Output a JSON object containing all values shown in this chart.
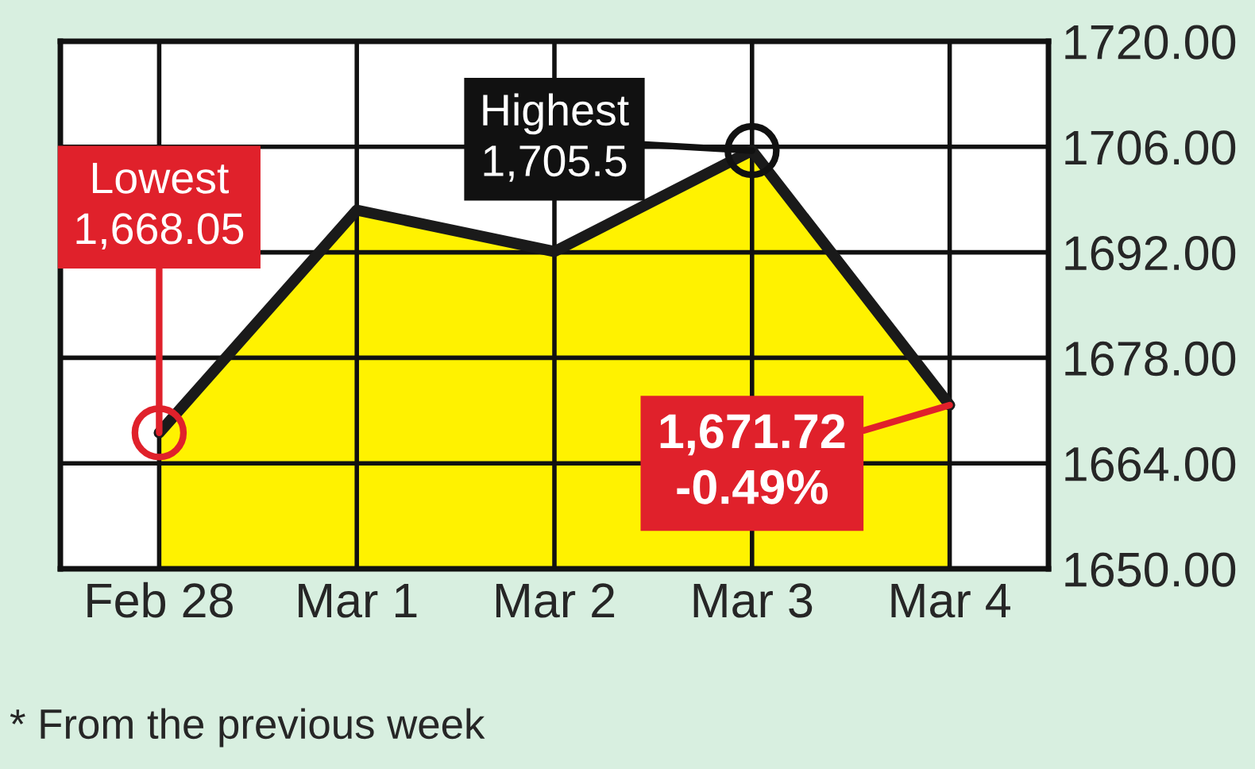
{
  "chart_data": {
    "type": "area",
    "categories": [
      "Feb 28",
      "Mar 1",
      "Mar 2",
      "Mar 3",
      "Mar 4"
    ],
    "series": [
      {
        "color": "#fff200",
        "values": [
          1668.05,
          1697.6,
          1692.1,
          1705.5,
          1671.72
        ]
      }
    ],
    "ylim": [
      1650,
      1720
    ],
    "yticks": [
      {
        "value": 1650,
        "label": "1650.00"
      },
      {
        "value": 1664,
        "label": "1664.00"
      },
      {
        "value": 1678,
        "label": "1678.00"
      },
      {
        "value": 1692,
        "label": "1692.00"
      },
      {
        "value": 1706,
        "label": "1706.00"
      },
      {
        "value": 1720,
        "label": "1720.00"
      }
    ],
    "grid": true,
    "annotations": [
      {
        "text": "Lowest\n1,668.05",
        "x": "Feb 28",
        "y": 1668.05
      },
      {
        "text": "Highest\n1,705.5",
        "x": "Mar 3",
        "y": 1705.5
      },
      {
        "text": "1,671.72\n-0.49%",
        "x": "Mar 4",
        "y": 1671.72
      },
      "* From the previous week"
    ]
  }
}
